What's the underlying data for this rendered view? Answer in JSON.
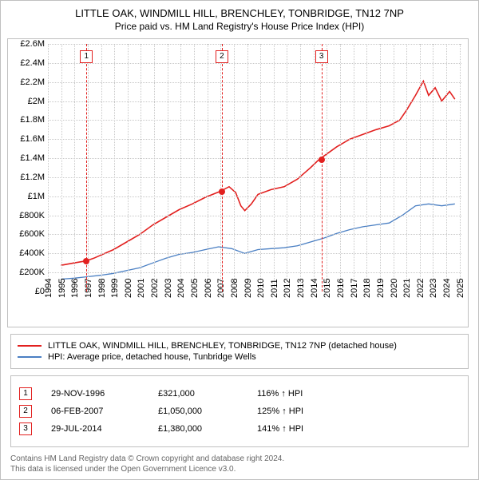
{
  "title": "LITTLE OAK, WINDMILL HILL, BRENCHLEY, TONBRIDGE, TN12 7NP",
  "subtitle": "Price paid vs. HM Land Registry's House Price Index (HPI)",
  "chart": {
    "type": "line",
    "background_color": "#ffffff",
    "grid_color": "#c8c8c8",
    "border_color": "#c0c0c0",
    "xlim": [
      1994,
      2025.5
    ],
    "ylim": [
      0,
      2600000
    ],
    "ytick_step": 200000,
    "yticks_labels": [
      "£0",
      "£200K",
      "£400K",
      "£600K",
      "£800K",
      "£1M",
      "£1.2M",
      "£1.4M",
      "£1.6M",
      "£1.8M",
      "£2M",
      "£2.2M",
      "£2.4M",
      "£2.6M"
    ],
    "xticks": [
      1994,
      1995,
      1996,
      1997,
      1998,
      1999,
      2000,
      2001,
      2002,
      2003,
      2004,
      2005,
      2006,
      2007,
      2008,
      2009,
      2010,
      2011,
      2012,
      2013,
      2014,
      2015,
      2016,
      2017,
      2018,
      2019,
      2020,
      2021,
      2022,
      2023,
      2024,
      2025
    ],
    "title_fontsize": 13,
    "label_fontsize": 11,
    "series": [
      {
        "name": "property",
        "label": "LITTLE OAK, WINDMILL HILL, BRENCHLEY, TONBRIDGE, TN12 7NP (detached house)",
        "color": "#e2201f",
        "line_width": 1.6,
        "points": [
          [
            1995.0,
            275000
          ],
          [
            1996.0,
            300000
          ],
          [
            1996.9,
            321000
          ],
          [
            1997.5,
            350000
          ],
          [
            1998.0,
            380000
          ],
          [
            1999.0,
            440000
          ],
          [
            2000.0,
            520000
          ],
          [
            2001.0,
            600000
          ],
          [
            2002.0,
            700000
          ],
          [
            2003.0,
            780000
          ],
          [
            2004.0,
            860000
          ],
          [
            2005.0,
            920000
          ],
          [
            2006.0,
            990000
          ],
          [
            2007.1,
            1050000
          ],
          [
            2007.8,
            1100000
          ],
          [
            2008.3,
            1040000
          ],
          [
            2008.7,
            900000
          ],
          [
            2009.0,
            850000
          ],
          [
            2009.5,
            920000
          ],
          [
            2010.0,
            1020000
          ],
          [
            2011.0,
            1070000
          ],
          [
            2012.0,
            1100000
          ],
          [
            2013.0,
            1180000
          ],
          [
            2014.0,
            1300000
          ],
          [
            2014.6,
            1380000
          ],
          [
            2015.0,
            1420000
          ],
          [
            2016.0,
            1520000
          ],
          [
            2017.0,
            1600000
          ],
          [
            2018.0,
            1650000
          ],
          [
            2019.0,
            1700000
          ],
          [
            2020.0,
            1740000
          ],
          [
            2020.8,
            1800000
          ],
          [
            2021.3,
            1900000
          ],
          [
            2022.0,
            2060000
          ],
          [
            2022.6,
            2210000
          ],
          [
            2023.0,
            2060000
          ],
          [
            2023.5,
            2140000
          ],
          [
            2024.0,
            2000000
          ],
          [
            2024.6,
            2100000
          ],
          [
            2025.0,
            2020000
          ]
        ]
      },
      {
        "name": "hpi",
        "label": "HPI: Average price, detached house, Tunbridge Wells",
        "color": "#4a7fc3",
        "line_width": 1.3,
        "points": [
          [
            1995.0,
            130000
          ],
          [
            1996.0,
            140000
          ],
          [
            1997.0,
            155000
          ],
          [
            1998.0,
            170000
          ],
          [
            1999.0,
            190000
          ],
          [
            2000.0,
            220000
          ],
          [
            2001.0,
            250000
          ],
          [
            2002.0,
            300000
          ],
          [
            2003.0,
            350000
          ],
          [
            2004.0,
            390000
          ],
          [
            2005.0,
            410000
          ],
          [
            2006.0,
            440000
          ],
          [
            2007.0,
            470000
          ],
          [
            2008.0,
            450000
          ],
          [
            2009.0,
            400000
          ],
          [
            2010.0,
            440000
          ],
          [
            2011.0,
            450000
          ],
          [
            2012.0,
            460000
          ],
          [
            2013.0,
            480000
          ],
          [
            2014.0,
            520000
          ],
          [
            2015.0,
            560000
          ],
          [
            2016.0,
            610000
          ],
          [
            2017.0,
            650000
          ],
          [
            2018.0,
            680000
          ],
          [
            2019.0,
            700000
          ],
          [
            2020.0,
            720000
          ],
          [
            2021.0,
            800000
          ],
          [
            2022.0,
            900000
          ],
          [
            2023.0,
            920000
          ],
          [
            2024.0,
            900000
          ],
          [
            2025.0,
            920000
          ]
        ]
      }
    ],
    "callouts": [
      {
        "n": "1",
        "x": 1996.9,
        "color": "#e2201f",
        "marker_y": 321000
      },
      {
        "n": "2",
        "x": 2007.1,
        "color": "#e2201f",
        "marker_y": 1050000
      },
      {
        "n": "3",
        "x": 2014.6,
        "color": "#e2201f",
        "marker_y": 1380000
      }
    ]
  },
  "legend": {
    "items": [
      {
        "color": "#e2201f",
        "label": "LITTLE OAK, WINDMILL HILL, BRENCHLEY, TONBRIDGE, TN12 7NP (detached house)"
      },
      {
        "color": "#4a7fc3",
        "label": "HPI: Average price, detached house, Tunbridge Wells"
      }
    ]
  },
  "events": [
    {
      "n": "1",
      "color": "#e2201f",
      "date": "29-NOV-1996",
      "price": "£321,000",
      "hpi": "116% ↑ HPI"
    },
    {
      "n": "2",
      "color": "#e2201f",
      "date": "06-FEB-2007",
      "price": "£1,050,000",
      "hpi": "125% ↑ HPI"
    },
    {
      "n": "3",
      "color": "#e2201f",
      "date": "29-JUL-2014",
      "price": "£1,380,000",
      "hpi": "141% ↑ HPI"
    }
  ],
  "footnote_line1": "Contains HM Land Registry data © Crown copyright and database right 2024.",
  "footnote_line2": "This data is licensed under the Open Government Licence v3.0."
}
